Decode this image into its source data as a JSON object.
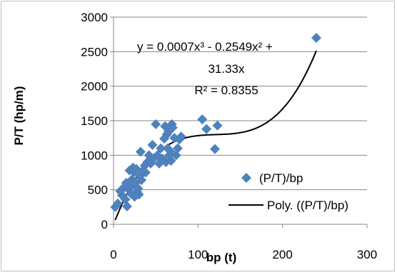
{
  "chart_data": {
    "type": "scatter",
    "xlabel": "bp (t)",
    "ylabel": "P/T  (hp/m)",
    "xlim": [
      0,
      300
    ],
    "ylim": [
      0,
      3000
    ],
    "x_ticks": [
      0,
      100,
      200,
      300
    ],
    "y_ticks": [
      0,
      500,
      1000,
      1500,
      2000,
      2500,
      3000
    ],
    "x_tick_labels": [
      "0",
      "100",
      "200",
      "300"
    ],
    "y_tick_labels": [
      "0",
      "500",
      "1000",
      "1500",
      "2000",
      "2500",
      "3000"
    ],
    "grid": "horizontal",
    "legend_position": "right",
    "series": [
      {
        "name": "(P/T)/bp",
        "kind": "points",
        "color": "#4f81bd",
        "marker": "diamond",
        "points": [
          [
            2,
            250
          ],
          [
            5,
            300
          ],
          [
            8,
            480
          ],
          [
            10,
            420
          ],
          [
            12,
            530
          ],
          [
            14,
            360
          ],
          [
            15,
            600
          ],
          [
            16,
            260
          ],
          [
            18,
            500
          ],
          [
            19,
            780
          ],
          [
            20,
            550
          ],
          [
            21,
            440
          ],
          [
            22,
            650
          ],
          [
            23,
            820
          ],
          [
            24,
            760
          ],
          [
            25,
            400
          ],
          [
            26,
            600
          ],
          [
            27,
            800
          ],
          [
            28,
            470
          ],
          [
            29,
            520
          ],
          [
            30,
            430
          ],
          [
            31,
            700
          ],
          [
            32,
            1050
          ],
          [
            33,
            640
          ],
          [
            35,
            780
          ],
          [
            37,
            850
          ],
          [
            38,
            750
          ],
          [
            40,
            900
          ],
          [
            42,
            1000
          ],
          [
            44,
            880
          ],
          [
            46,
            1150
          ],
          [
            48,
            960
          ],
          [
            50,
            1450
          ],
          [
            52,
            1000
          ],
          [
            54,
            880
          ],
          [
            56,
            1100
          ],
          [
            58,
            950
          ],
          [
            60,
            1240
          ],
          [
            61,
            1420
          ],
          [
            62,
            900
          ],
          [
            63,
            1300
          ],
          [
            64,
            1100
          ],
          [
            65,
            1340
          ],
          [
            66,
            1000
          ],
          [
            67,
            1060
          ],
          [
            68,
            920
          ],
          [
            69,
            1450
          ],
          [
            70,
            1400
          ],
          [
            72,
            1250
          ],
          [
            74,
            1000
          ],
          [
            76,
            1100
          ],
          [
            78,
            1230
          ],
          [
            80,
            1270
          ],
          [
            105,
            1520
          ],
          [
            110,
            1380
          ],
          [
            120,
            1090
          ],
          [
            123,
            1430
          ],
          [
            240,
            2700
          ]
        ]
      },
      {
        "name": "Poly. ((P/T)/bp)",
        "kind": "trendline",
        "color": "#000000",
        "equation": "y = 0.0007x³ - 0.2549x² + 31.33x",
        "coefficients": [
          0.0007,
          -0.2549,
          31.33,
          0
        ],
        "x_range": [
          2,
          240
        ]
      }
    ],
    "annotations": {
      "equation_line1": "y = 0.0007x³ - 0.2549x² +",
      "equation_line2": "31.33x",
      "r_squared": "R² = 0.8355"
    }
  }
}
